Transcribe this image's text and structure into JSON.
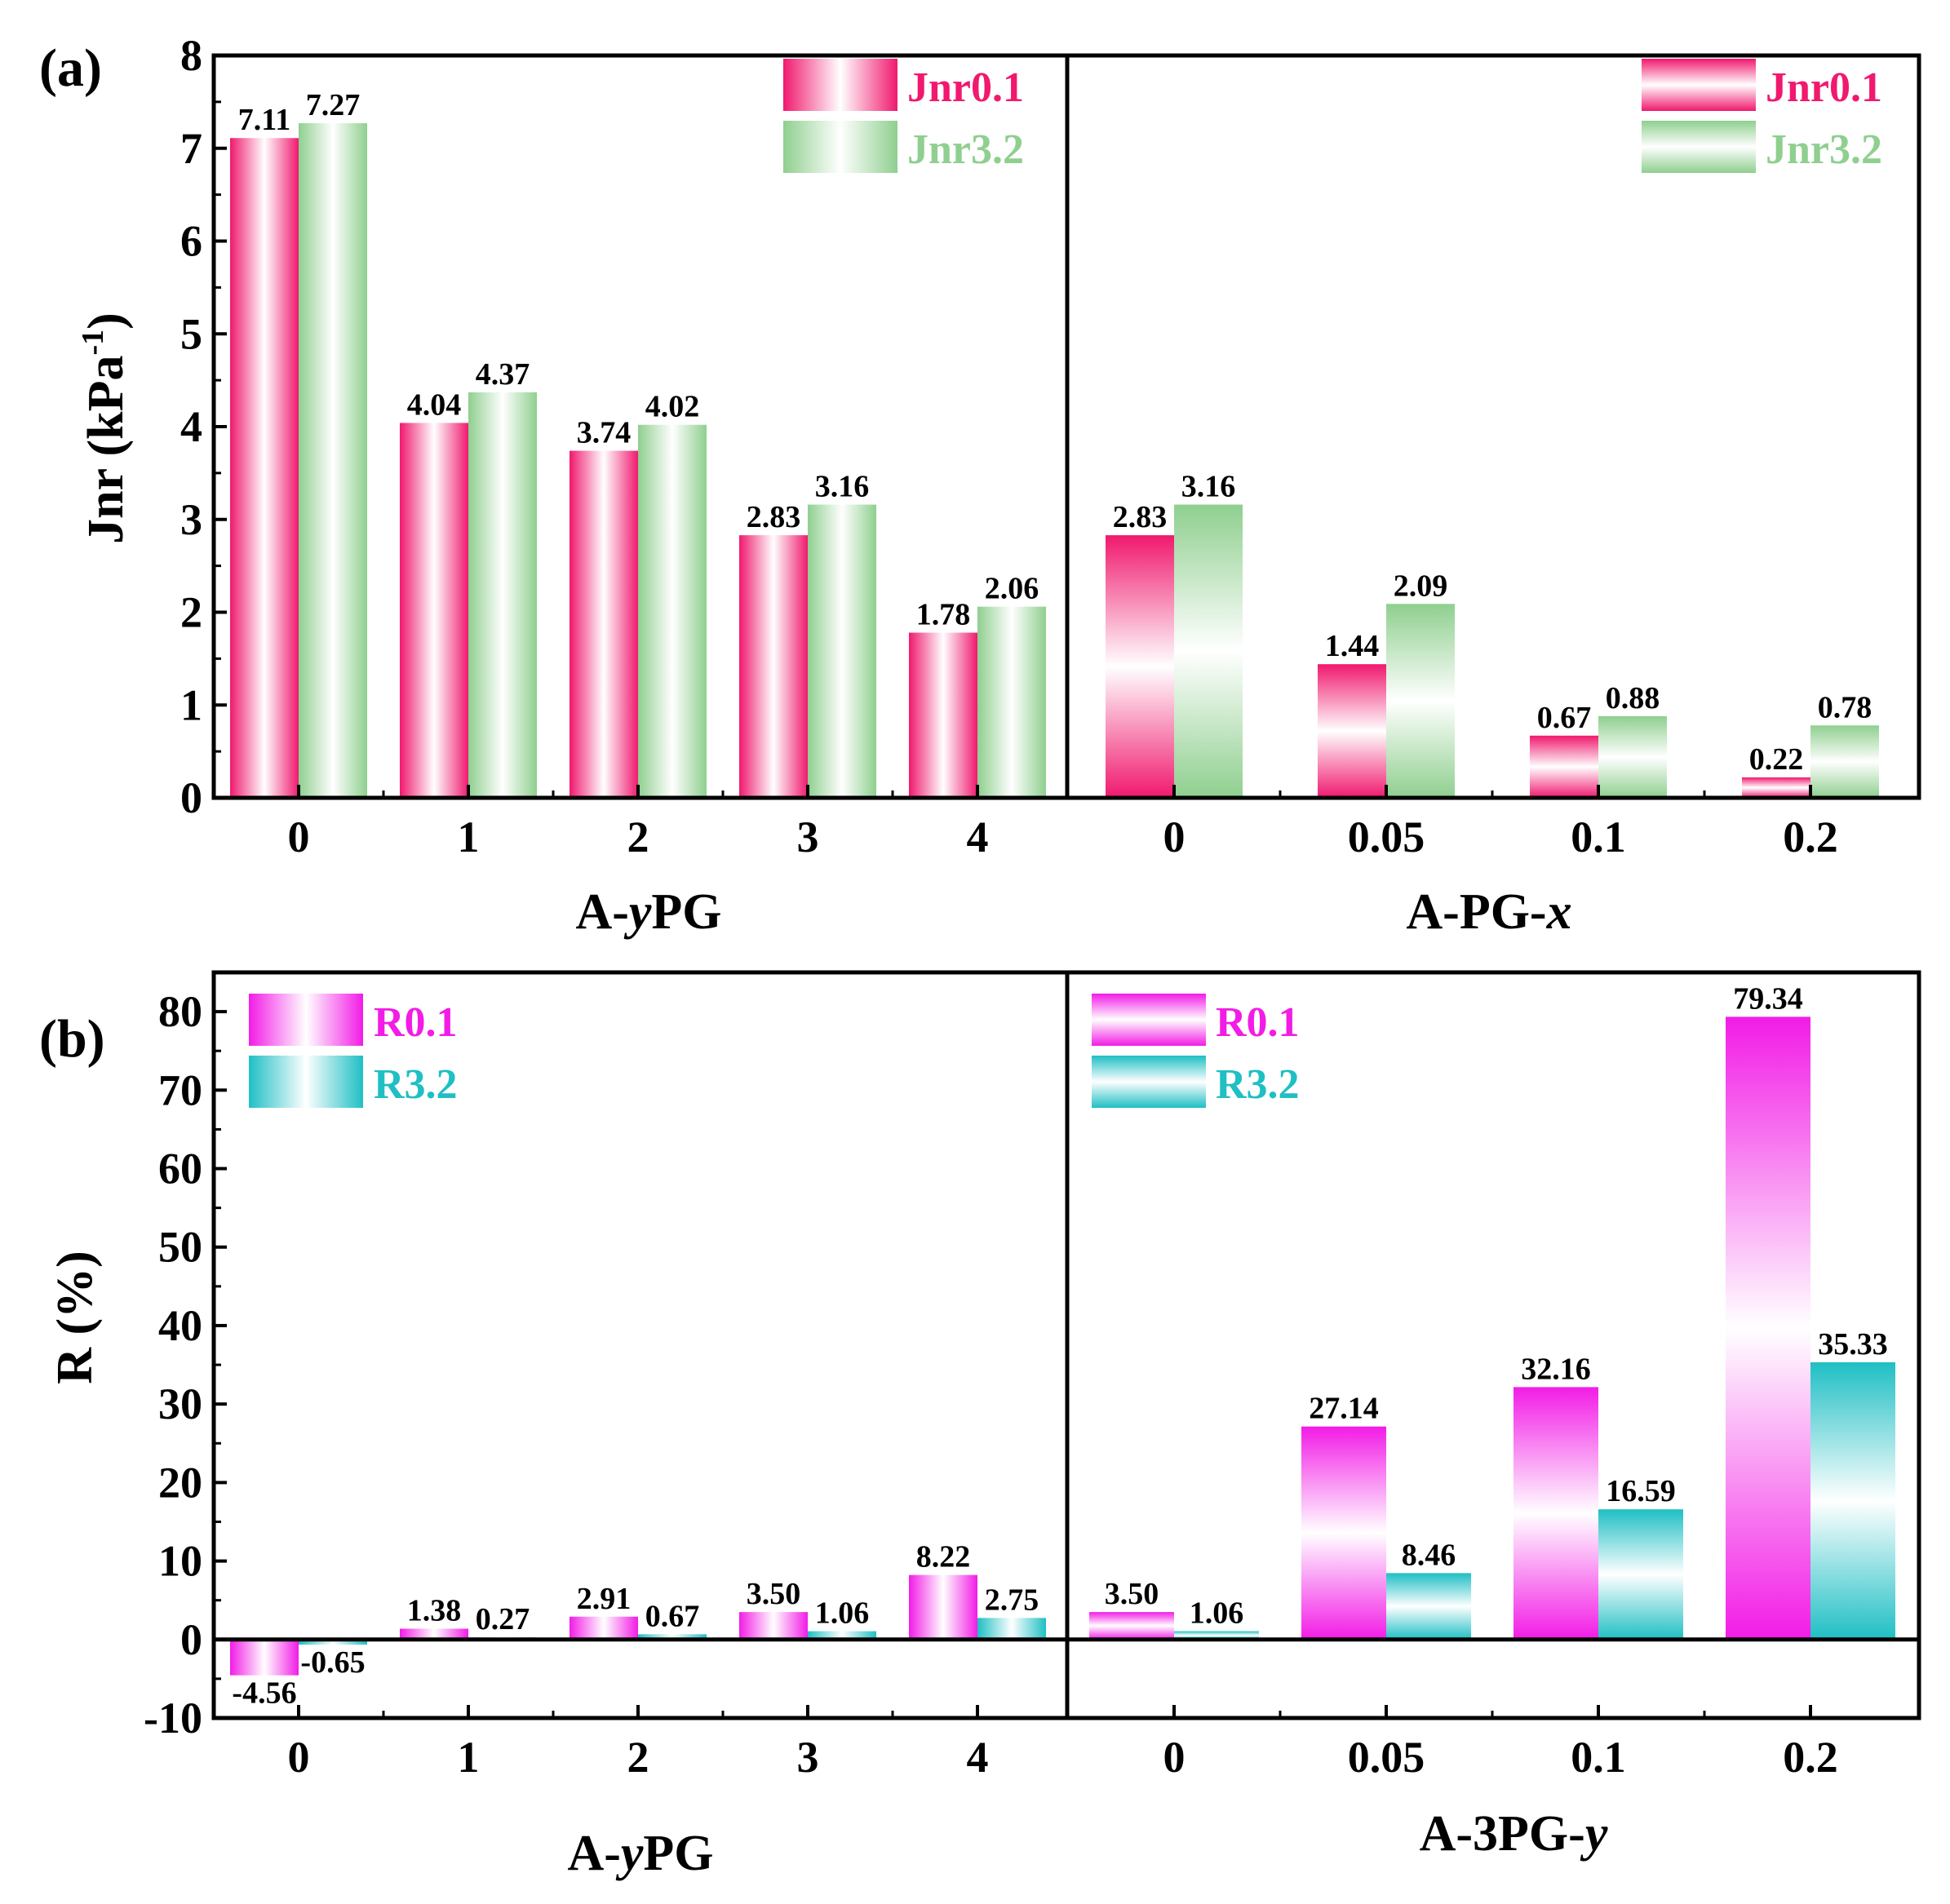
{
  "colors": {
    "jnr01": "#f0196e",
    "jnr32": "#8fcf8f",
    "r01": "#f21ce6",
    "r32": "#1fbfc4"
  },
  "chart_data": [
    {
      "type": "bar",
      "panel_label": "(a)",
      "ylabel": "Jnr (kPa",
      "ylabel_sup": "-1",
      "ylabel_tail": ")",
      "ylim": [
        0,
        8
      ],
      "yticks": [
        "0",
        "1",
        "2",
        "3",
        "4",
        "5",
        "6",
        "7",
        "8"
      ],
      "left": {
        "xlabel_pre": "A-",
        "xlabel_ital": "y",
        "xlabel_post": "PG",
        "categories": [
          "0",
          "1",
          "2",
          "3",
          "4"
        ],
        "series": [
          {
            "name": "Jnr0.1",
            "values": [
              7.11,
              4.04,
              3.74,
              2.83,
              1.78
            ],
            "labels": [
              "7.11",
              "4.04",
              "3.74",
              "2.83",
              "1.78"
            ]
          },
          {
            "name": "Jnr3.2",
            "values": [
              7.27,
              4.37,
              4.02,
              3.16,
              2.06
            ],
            "labels": [
              "7.27",
              "4.37",
              "4.02",
              "3.16",
              "2.06"
            ]
          }
        ]
      },
      "right": {
        "xlabel_pre": "A-PG-",
        "xlabel_ital": "x",
        "xlabel_post": "",
        "categories": [
          "0",
          "0.05",
          "0.1",
          "0.2"
        ],
        "series": [
          {
            "name": "Jnr0.1",
            "values": [
              2.83,
              1.44,
              0.67,
              0.22
            ],
            "labels": [
              "2.83",
              "1.44",
              "0.67",
              "0.22"
            ]
          },
          {
            "name": "Jnr3.2",
            "values": [
              3.16,
              2.09,
              0.88,
              0.78
            ],
            "labels": [
              "3.16",
              "2.09",
              "0.88",
              "0.78"
            ]
          }
        ]
      }
    },
    {
      "type": "bar",
      "panel_label": "(b)",
      "ylabel": "R (%)",
      "ylim": [
        -10,
        85
      ],
      "yticks": [
        "-10",
        "0",
        "10",
        "20",
        "30",
        "40",
        "50",
        "60",
        "70",
        "80"
      ],
      "left": {
        "xlabel_pre": "A-",
        "xlabel_ital": "y",
        "xlabel_post": "PG",
        "categories": [
          "0",
          "1",
          "2",
          "3",
          "4"
        ],
        "series": [
          {
            "name": "R0.1",
            "values": [
              -4.56,
              1.38,
              2.91,
              3.5,
              8.22
            ],
            "labels": [
              "-4.56",
              "1.38",
              "2.91",
              "3.50",
              "8.22"
            ]
          },
          {
            "name": "R3.2",
            "values": [
              -0.65,
              0.27,
              0.67,
              1.06,
              2.75
            ],
            "labels": [
              "-0.65",
              "0.27",
              "0.67",
              "1.06",
              "2.75"
            ]
          }
        ]
      },
      "right": {
        "xlabel_pre": "A-3PG-",
        "xlabel_ital": "y",
        "xlabel_post": "",
        "categories": [
          "0",
          "0.05",
          "0.1",
          "0.2"
        ],
        "series": [
          {
            "name": "R0.1",
            "values": [
              3.5,
              27.14,
              32.16,
              79.34
            ],
            "labels": [
              "3.50",
              "27.14",
              "32.16",
              "79.34"
            ]
          },
          {
            "name": "R3.2",
            "values": [
              1.06,
              8.46,
              16.59,
              35.33
            ],
            "labels": [
              "1.06",
              "8.46",
              "16.59",
              "35.33"
            ]
          }
        ]
      }
    }
  ]
}
